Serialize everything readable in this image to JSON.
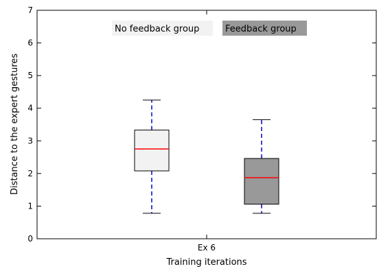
{
  "chart_data": {
    "type": "boxplot",
    "xlabel": "Training iterations",
    "ylabel": "Distance to the expert gestures",
    "ylim": [
      0,
      7
    ],
    "yticks": [
      0,
      1,
      2,
      3,
      4,
      5,
      6,
      7
    ],
    "categories": [
      "Ex 6"
    ],
    "grid": false,
    "legend_position": "top-center",
    "series": [
      {
        "name": "No feedback group",
        "color": "#f2f2f2",
        "median_color": "#ff0000",
        "whisker_color": "#0000cc",
        "boxes": [
          {
            "category": "Ex 6",
            "min": 0.78,
            "q1": 2.08,
            "median": 2.75,
            "q3": 3.33,
            "max": 4.25
          }
        ]
      },
      {
        "name": "Feedback group",
        "color": "#999999",
        "median_color": "#ff0000",
        "whisker_color": "#0000cc",
        "boxes": [
          {
            "category": "Ex 6",
            "min": 0.78,
            "q1": 1.06,
            "median": 1.87,
            "q3": 2.46,
            "max": 3.65
          }
        ]
      }
    ]
  }
}
